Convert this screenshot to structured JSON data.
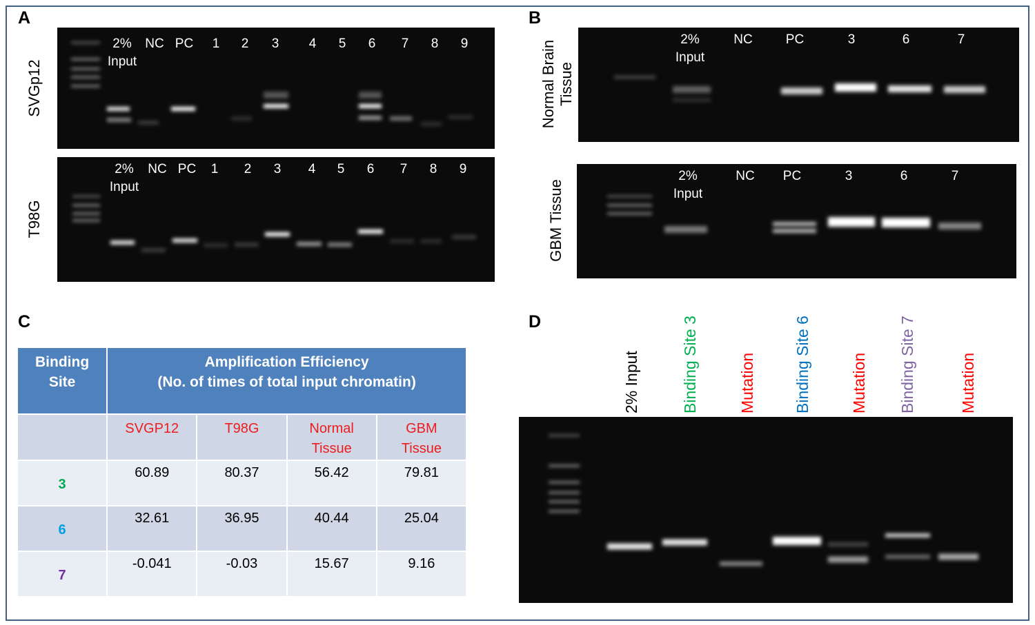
{
  "panels": {
    "A": {
      "label": "A",
      "gels": [
        {
          "sample": "SVGp12",
          "lanes": [
            "2% Input",
            "NC",
            "PC",
            "1",
            "2",
            "3",
            "4",
            "5",
            "6",
            "7",
            "8",
            "9"
          ]
        },
        {
          "sample": "T98G",
          "lanes": [
            "2% Input",
            "NC",
            "PC",
            "1",
            "2",
            "3",
            "4",
            "5",
            "6",
            "7",
            "8",
            "9"
          ]
        }
      ]
    },
    "B": {
      "label": "B",
      "gels": [
        {
          "sample": "Normal Brain Tissue",
          "lanes": [
            "2% Input",
            "NC",
            "PC",
            "3",
            "6",
            "7"
          ]
        },
        {
          "sample": "GBM Tissue",
          "lanes": [
            "2% Input",
            "NC",
            "PC",
            "3",
            "6",
            "7"
          ]
        }
      ]
    },
    "C": {
      "label": "C",
      "table": {
        "header": [
          "Binding Site",
          [
            "Amplification Efficiency",
            "(No. of times of total input chromatin)"
          ]
        ],
        "subheader": {
          "color": "#ee1c1c",
          "cells": [
            "SVGP12",
            "T98G",
            "Normal Tissue",
            "GBM Tissue"
          ]
        },
        "rows": [
          {
            "site": 3,
            "color": "#00a850",
            "values": [
              60.89,
              80.37,
              56.42,
              79.81
            ]
          },
          {
            "site": 6,
            "color": "#00a0e0",
            "values": [
              32.61,
              36.95,
              40.44,
              25.04
            ]
          },
          {
            "site": 7,
            "color": "#7030a0",
            "values": [
              -0.041,
              -0.03,
              15.67,
              9.16
            ]
          }
        ]
      }
    },
    "D": {
      "label": "D",
      "lanes": [
        {
          "text": "2% Input",
          "color": "#000000"
        },
        {
          "text": "Binding Site 3",
          "color": "#00b050"
        },
        {
          "text": "Mutation",
          "color": "#ff0000"
        },
        {
          "text": "Binding Site 6",
          "color": "#0070c0"
        },
        {
          "text": "Mutation",
          "color": "#ff0000"
        },
        {
          "text": "Binding Site 7",
          "color": "#8064a2"
        },
        {
          "text": "Mutation",
          "color": "#ff0000"
        }
      ]
    }
  }
}
